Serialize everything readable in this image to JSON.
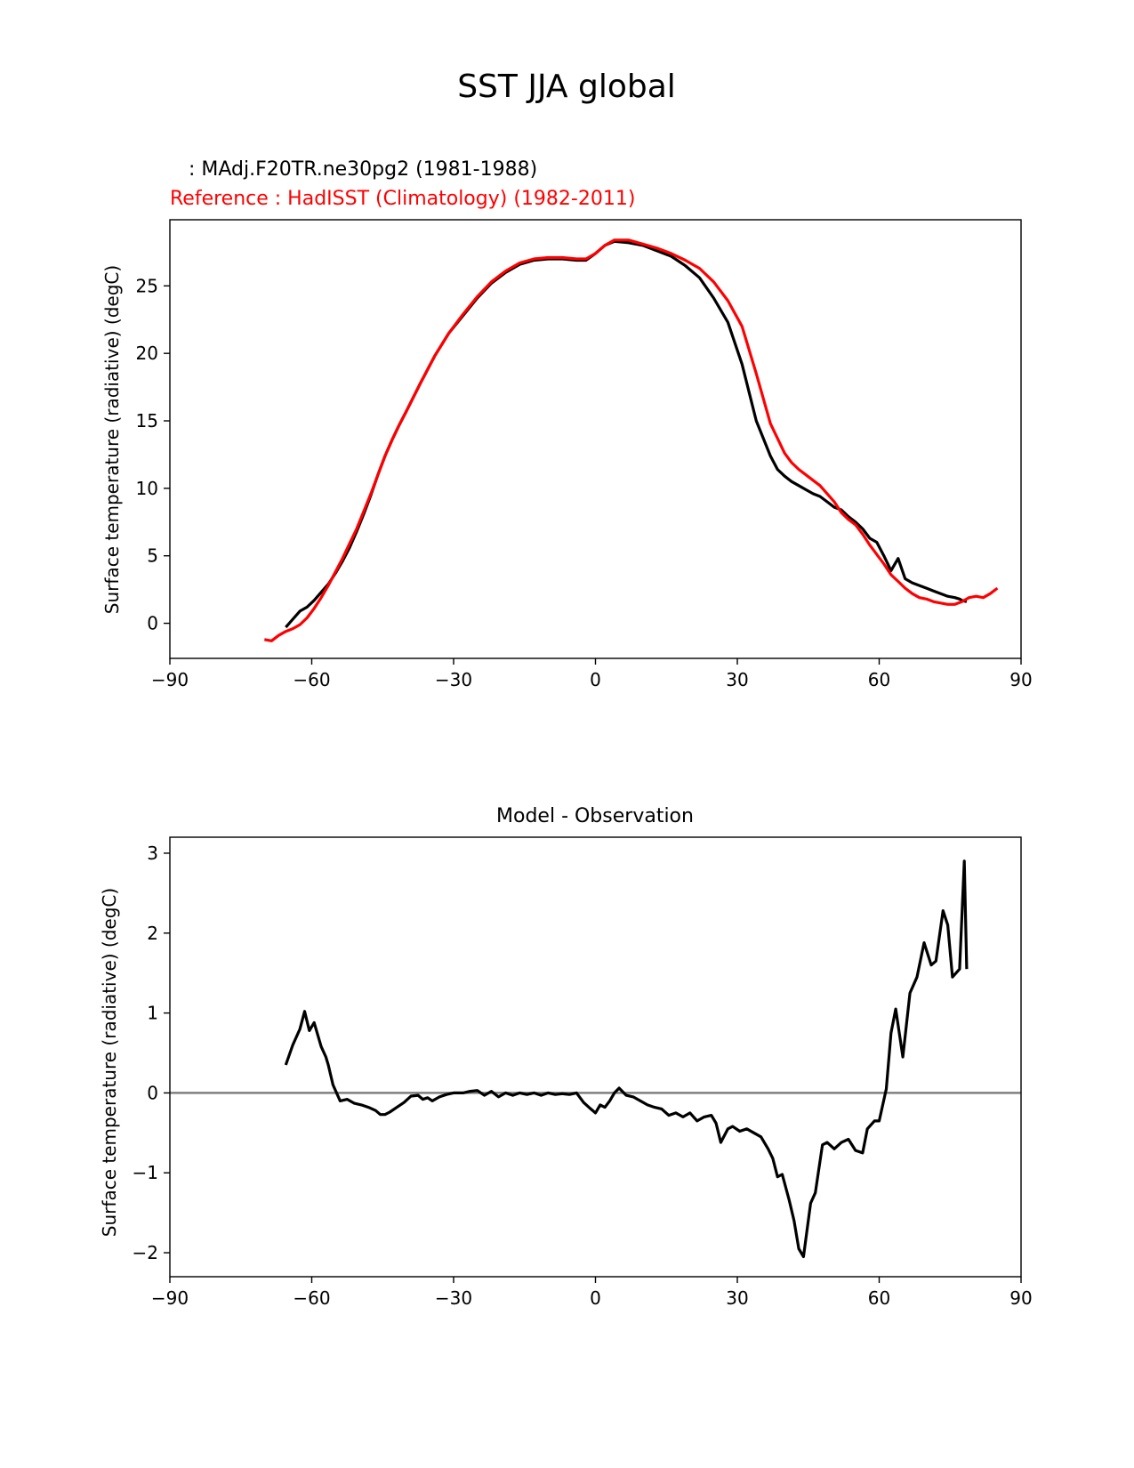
{
  "figure": {
    "title": "SST JJA global"
  },
  "chart_data": [
    {
      "type": "line",
      "title_model": " : MAdj.F20TR.ne30pg2 (1981-1988)",
      "title_reference": "Reference : HadISST (Climatology) (1982-2011)",
      "xlabel": "",
      "ylabel": "Surface temperature (radiative) (degC)",
      "xlim": [
        -90,
        90
      ],
      "ylim": [
        -2.6,
        29.9
      ],
      "xticks": [
        -90,
        -60,
        -30,
        0,
        30,
        60,
        90
      ],
      "xtick_labels": [
        "−90",
        "−60",
        "−30",
        "0",
        "30",
        "60",
        "90"
      ],
      "yticks": [
        0,
        5,
        10,
        15,
        20,
        25
      ],
      "ytick_labels": [
        "0",
        "5",
        "10",
        "15",
        "20",
        "25"
      ],
      "series": [
        {
          "name": "Model",
          "color": "#000000",
          "x": [
            -65.5,
            -64,
            -62.5,
            -61,
            -59.5,
            -58,
            -56.5,
            -55,
            -53.5,
            -52,
            -50.5,
            -49,
            -47.5,
            -46,
            -44.5,
            -43,
            -41.5,
            -40,
            -37,
            -34,
            -31,
            -28,
            -25,
            -22,
            -19,
            -16,
            -13,
            -10,
            -7,
            -4,
            -2,
            0,
            2,
            4,
            7,
            10,
            13,
            16,
            19,
            22,
            25,
            28,
            31,
            34,
            37,
            38.5,
            40,
            41.5,
            43,
            44.5,
            46,
            47.5,
            49,
            50.5,
            52,
            53.5,
            55,
            56.5,
            58,
            59.5,
            61,
            62.5,
            64,
            65.5,
            67,
            68.5,
            70,
            71.5,
            73,
            74.5,
            76,
            77,
            77.5,
            78.5
          ],
          "values": [
            -0.3,
            0.3,
            0.9,
            1.2,
            1.7,
            2.3,
            2.9,
            3.7,
            4.6,
            5.6,
            6.8,
            8.1,
            9.5,
            11.0,
            12.4,
            13.6,
            14.7,
            15.7,
            17.8,
            19.8,
            21.5,
            22.8,
            24.1,
            25.2,
            26.0,
            26.6,
            26.9,
            27.0,
            27.0,
            26.9,
            26.9,
            27.4,
            28.0,
            28.3,
            28.2,
            28.0,
            27.6,
            27.2,
            26.5,
            25.6,
            24.1,
            22.3,
            19.2,
            15.0,
            12.4,
            11.4,
            10.9,
            10.5,
            10.2,
            9.9,
            9.6,
            9.4,
            9.0,
            8.6,
            8.4,
            7.9,
            7.5,
            7.0,
            6.3,
            6.0,
            5.0,
            3.9,
            4.8,
            3.3,
            3.0,
            2.8,
            2.6,
            2.4,
            2.2,
            2.0,
            1.9,
            1.8,
            1.7,
            1.6
          ]
        },
        {
          "name": "Reference",
          "color": "#ff0000",
          "x": [
            -70,
            -68.5,
            -67,
            -65.5,
            -64,
            -62.5,
            -61,
            -59.5,
            -58,
            -56.5,
            -55,
            -53.5,
            -52,
            -50.5,
            -49,
            -47.5,
            -46,
            -44.5,
            -43,
            -41.5,
            -40,
            -37,
            -34,
            -31,
            -28,
            -25,
            -22,
            -19,
            -16,
            -13,
            -10,
            -7,
            -4,
            -2,
            0,
            2,
            4,
            7,
            10,
            13,
            16,
            19,
            22,
            25,
            28,
            31,
            34,
            37,
            40,
            41.5,
            43,
            44.5,
            46,
            47.5,
            49,
            50.5,
            52,
            53.5,
            55,
            56.5,
            58,
            59.5,
            61,
            62.5,
            64,
            65.5,
            67,
            68.5,
            70,
            71.5,
            73,
            74.5,
            76,
            77.5,
            79,
            80.5,
            82,
            83.5,
            85
          ],
          "values": [
            -1.2,
            -1.3,
            -0.9,
            -0.6,
            -0.4,
            -0.1,
            0.4,
            1.1,
            1.9,
            2.8,
            3.8,
            4.8,
            5.9,
            7.0,
            8.3,
            9.6,
            11.0,
            12.4,
            13.6,
            14.7,
            15.7,
            17.8,
            19.8,
            21.5,
            22.9,
            24.2,
            25.3,
            26.1,
            26.7,
            27.0,
            27.1,
            27.1,
            27.0,
            27.0,
            27.4,
            28.0,
            28.4,
            28.4,
            28.1,
            27.8,
            27.4,
            26.9,
            26.3,
            25.3,
            23.9,
            22.0,
            18.5,
            14.8,
            12.6,
            11.9,
            11.4,
            11.0,
            10.6,
            10.2,
            9.6,
            9.0,
            8.2,
            7.7,
            7.3,
            6.6,
            5.8,
            5.1,
            4.4,
            3.6,
            3.1,
            2.6,
            2.2,
            1.9,
            1.8,
            1.6,
            1.5,
            1.4,
            1.4,
            1.6,
            1.9,
            2.0,
            1.9,
            2.2,
            2.6
          ]
        }
      ]
    },
    {
      "type": "line",
      "title": "Model - Observation",
      "xlabel": "",
      "ylabel": "Surface temperature (radiative) (degC)",
      "xlim": [
        -90,
        90
      ],
      "ylim": [
        -2.3,
        3.2
      ],
      "xticks": [
        -90,
        -60,
        -30,
        0,
        30,
        60,
        90
      ],
      "xtick_labels": [
        "−90",
        "−60",
        "−30",
        "0",
        "30",
        "60",
        "90"
      ],
      "yticks": [
        -2,
        -1,
        0,
        1,
        2,
        3
      ],
      "ytick_labels": [
        "−2",
        "−1",
        "0",
        "1",
        "2",
        "3"
      ],
      "zero_line": {
        "y": 0,
        "color": "#808080"
      },
      "series": [
        {
          "name": "Model - Observation",
          "color": "#000000",
          "x": [
            -65.5,
            -64,
            -62.5,
            -61.5,
            -60.5,
            -59.5,
            -58,
            -57,
            -56.5,
            -55.5,
            -54,
            -52.5,
            -51,
            -49.5,
            -48,
            -46.5,
            -45.5,
            -44.5,
            -43.5,
            -42,
            -40.5,
            -39,
            -37.5,
            -36.5,
            -35.5,
            -34.5,
            -33,
            -31.5,
            -30,
            -28,
            -26.5,
            -25,
            -23.5,
            -22,
            -20.5,
            -19,
            -17.5,
            -16,
            -14.5,
            -13,
            -11.5,
            -10,
            -8.5,
            -7,
            -5.5,
            -4,
            -2.5,
            -1,
            0,
            1,
            2,
            3,
            4,
            5,
            6.5,
            8,
            9.5,
            11,
            12.5,
            14,
            15.5,
            17,
            18.5,
            20,
            21.5,
            23,
            24.5,
            25.5,
            26.5,
            28,
            29,
            30.5,
            32,
            33.5,
            35,
            36.5,
            37.5,
            38.5,
            39.5,
            41,
            42,
            43,
            44,
            45.5,
            46.5,
            48,
            49,
            50.5,
            52,
            53.5,
            55,
            56.5,
            57.5,
            59,
            60,
            61.5,
            62.5,
            63.5,
            65,
            66.5,
            68,
            69.5,
            71,
            72,
            73.5,
            74.5,
            75.5,
            77,
            78,
            78.5
          ],
          "values": [
            0.35,
            0.6,
            0.8,
            1.02,
            0.78,
            0.88,
            0.58,
            0.45,
            0.35,
            0.1,
            -0.1,
            -0.08,
            -0.13,
            -0.15,
            -0.18,
            -0.22,
            -0.27,
            -0.27,
            -0.24,
            -0.18,
            -0.12,
            -0.04,
            -0.03,
            -0.08,
            -0.06,
            -0.1,
            -0.05,
            -0.02,
            0.0,
            0.0,
            0.02,
            0.03,
            -0.03,
            0.02,
            -0.05,
            0.0,
            -0.03,
            0.0,
            -0.02,
            0.0,
            -0.03,
            0.0,
            -0.02,
            -0.01,
            -0.02,
            0.0,
            -0.12,
            -0.2,
            -0.25,
            -0.15,
            -0.18,
            -0.1,
            0.0,
            0.06,
            -0.03,
            -0.05,
            -0.1,
            -0.15,
            -0.18,
            -0.2,
            -0.28,
            -0.25,
            -0.3,
            -0.25,
            -0.35,
            -0.3,
            -0.28,
            -0.38,
            -0.62,
            -0.45,
            -0.42,
            -0.48,
            -0.45,
            -0.5,
            -0.55,
            -0.7,
            -0.82,
            -1.05,
            -1.02,
            -1.35,
            -1.6,
            -1.95,
            -2.05,
            -1.38,
            -1.25,
            -0.65,
            -0.62,
            -0.7,
            -0.62,
            -0.58,
            -0.72,
            -0.75,
            -0.45,
            -0.35,
            -0.35,
            0.05,
            0.75,
            1.05,
            0.45,
            1.25,
            1.45,
            1.88,
            1.6,
            1.65,
            2.28,
            2.1,
            1.45,
            1.55,
            2.9,
            1.55
          ]
        }
      ]
    }
  ]
}
